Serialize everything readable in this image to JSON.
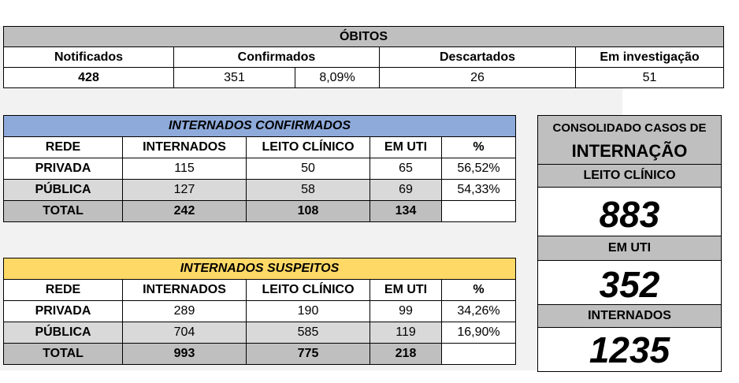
{
  "obitos": {
    "title": "ÓBITOS",
    "headers": [
      "Notificados",
      "Confirmados",
      "Descartados",
      "Em investigação"
    ],
    "notificados": "428",
    "confirmados": "351",
    "confirmados_pct": "8,09%",
    "descartados": "26",
    "em_investigacao": "51"
  },
  "internados_confirmados": {
    "title": "INTERNADOS CONFIRMADOS",
    "headers": [
      "REDE",
      "INTERNADOS",
      "LEITO CLÍNICO",
      "EM UTI",
      "%"
    ],
    "rows": [
      [
        "PRIVADA",
        "115",
        "50",
        "65",
        "56,52%"
      ],
      [
        "PÚBLICA",
        "127",
        "58",
        "69",
        "54,33%"
      ]
    ],
    "total": [
      "TOTAL",
      "242",
      "108",
      "134",
      ""
    ]
  },
  "internados_suspeitos": {
    "title": "INTERNADOS SUSPEITOS",
    "headers": [
      "REDE",
      "INTERNADOS",
      "LEITO CLÍNICO",
      "EM UTI",
      "%"
    ],
    "rows": [
      [
        "PRIVADA",
        "289",
        "190",
        "99",
        "34,26%"
      ],
      [
        "PÚBLICA",
        "704",
        "585",
        "119",
        "16,90%"
      ]
    ],
    "total": [
      "TOTAL",
      "993",
      "775",
      "218",
      ""
    ]
  },
  "consolidado": {
    "title_line1": "CONSOLIDADO CASOS DE",
    "title_line2": "INTERNAÇÃO",
    "leito_label": "LEITO CLÍNICO",
    "leito_value": "883",
    "uti_label": "EM UTI",
    "uti_value": "352",
    "internados_label": "INTERNADOS",
    "internados_value": "1235"
  },
  "colors": {
    "panel_bg": "#f2f2f2",
    "header_gray": "#bfbfbf",
    "row_gray": "#d9d9d9",
    "confirmados_header": "#8eaadb",
    "suspeitos_header": "#ffd966"
  }
}
